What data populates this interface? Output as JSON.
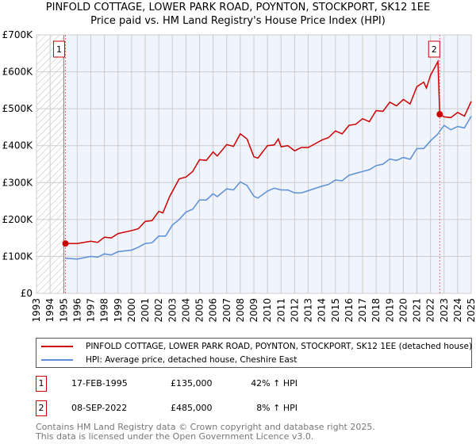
{
  "title": "PINFOLD COTTAGE, LOWER PARK ROAD, POYNTON, STOCKPORT, SK12 1EE",
  "subtitle": "Price paid vs. HM Land Registry's House Price Index (HPI)",
  "chart_data": {
    "type": "line",
    "xlim": [
      1993,
      2025
    ],
    "ylim": [
      0,
      700000
    ],
    "yticks": [
      {
        "v": 0,
        "label": "£0"
      },
      {
        "v": 100000,
        "label": "£100K"
      },
      {
        "v": 200000,
        "label": "£200K"
      },
      {
        "v": 300000,
        "label": "£300K"
      },
      {
        "v": 400000,
        "label": "£400K"
      },
      {
        "v": 500000,
        "label": "£500K"
      },
      {
        "v": 600000,
        "label": "£600K"
      },
      {
        "v": 700000,
        "label": "£700K"
      }
    ],
    "xticks": [
      "1993",
      "1994",
      "1995",
      "1996",
      "1997",
      "1998",
      "1999",
      "2000",
      "2001",
      "2002",
      "2003",
      "2004",
      "2005",
      "2006",
      "2007",
      "2008",
      "2009",
      "2010",
      "2011",
      "2012",
      "2013",
      "2014",
      "2015",
      "2016",
      "2017",
      "2018",
      "2019",
      "2020",
      "2021",
      "2022",
      "2023",
      "2024",
      "2025"
    ],
    "grid": true,
    "legend_placement": "bottom",
    "series": [
      {
        "name": "PINFOLD COTTAGE, LOWER PARK ROAD, POYNTON, STOCKPORT, SK12 1EE (detached house)",
        "color": "#cc0000",
        "x": [
          1995.13,
          1996,
          1997,
          1997.5,
          1998,
          1998.5,
          1999,
          2000,
          2000.5,
          2001,
          2001.5,
          2002,
          2002.3,
          2002.8,
          2003.5,
          2004,
          2004.5,
          2005,
          2005.5,
          2006,
          2006.3,
          2007,
          2007.5,
          2008,
          2008.5,
          2009,
          2009.3,
          2010,
          2010.5,
          2010.8,
          2011,
          2011.5,
          2012,
          2012.5,
          2013,
          2013.5,
          2014,
          2014.5,
          2015,
          2015.5,
          2016,
          2016.5,
          2017,
          2017.5,
          2018,
          2018.5,
          2019,
          2019.5,
          2020,
          2020.5,
          2021,
          2021.5,
          2021.7,
          2022,
          2022.55,
          2022.68,
          2023,
          2023.5,
          2024,
          2024.5,
          2025
        ],
        "y": [
          135,
          135,
          141,
          138,
          152,
          150,
          162,
          170,
          175,
          195,
          197,
          222,
          218,
          262,
          310,
          315,
          330,
          362,
          360,
          383,
          372,
          403,
          398,
          432,
          418,
          370,
          366,
          400,
          402,
          418,
          397,
          400,
          386,
          395,
          395,
          405,
          415,
          422,
          440,
          432,
          455,
          458,
          473,
          465,
          495,
          493,
          518,
          508,
          525,
          513,
          560,
          572,
          556,
          590,
          628,
          485,
          478,
          476,
          490,
          480,
          520
        ]
      },
      {
        "name": "HPI: Average price, detached house, Cheshire East",
        "color": "#5b8fd6",
        "x": [
          1995.13,
          1996,
          1997,
          1997.5,
          1998,
          1998.5,
          1999,
          2000,
          2000.5,
          2001,
          2001.5,
          2002,
          2002.5,
          2003,
          2003.5,
          2004,
          2004.5,
          2005,
          2005.5,
          2006,
          2006.3,
          2007,
          2007.5,
          2008,
          2008.5,
          2009,
          2009.3,
          2010,
          2010.5,
          2011,
          2011.5,
          2012,
          2012.5,
          2013,
          2014,
          2014.5,
          2015,
          2015.5,
          2016,
          2016.5,
          2017,
          2017.5,
          2018,
          2018.5,
          2019,
          2019.5,
          2020,
          2020.5,
          2021,
          2021.5,
          2022,
          2022.5,
          2023,
          2023.5,
          2024,
          2024.5,
          2025
        ],
        "y": [
          95,
          93,
          100,
          98,
          107,
          104,
          113,
          117,
          125,
          135,
          137,
          155,
          155,
          185,
          200,
          220,
          228,
          253,
          253,
          270,
          262,
          283,
          280,
          302,
          292,
          263,
          258,
          277,
          285,
          280,
          280,
          272,
          272,
          278,
          290,
          295,
          307,
          305,
          320,
          325,
          330,
          335,
          346,
          350,
          364,
          360,
          368,
          363,
          392,
          392,
          413,
          430,
          455,
          443,
          452,
          448,
          480
        ]
      }
    ],
    "y_units": "thousands GBP",
    "annotations": [
      {
        "label": "1",
        "x": 1995.13,
        "y": 135
      },
      {
        "label": "2",
        "x": 2022.68,
        "y": 485
      }
    ]
  },
  "legend": {
    "property": "PINFOLD COTTAGE, LOWER PARK ROAD, POYNTON, STOCKPORT, SK12 1EE (detached house)",
    "hpi": "HPI: Average price, detached house, Cheshire East"
  },
  "sales": [
    {
      "num": "1",
      "date": "17-FEB-1995",
      "price": "£135,000",
      "hpi": "42% ↑ HPI"
    },
    {
      "num": "2",
      "date": "08-SEP-2022",
      "price": "£485,000",
      "hpi": "8% ↑ HPI"
    }
  ],
  "footer": {
    "line1": "Contains HM Land Registry data © Crown copyright and database right 2025.",
    "line2": "This data is licensed under the Open Government Licence v3.0."
  }
}
